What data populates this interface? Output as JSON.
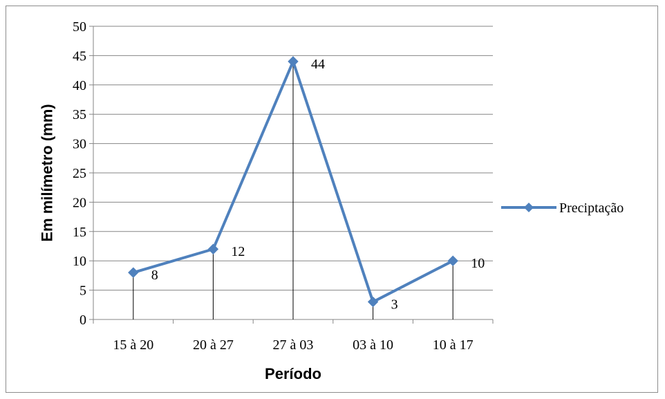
{
  "chart_data": {
    "type": "line",
    "categories": [
      "15 à 20",
      "20 à 27",
      "27 à 03",
      "03 à 10",
      "10 à 17"
    ],
    "series": [
      {
        "name": "Preciptação",
        "values": [
          8,
          12,
          44,
          3,
          10
        ],
        "data_labels": [
          "8",
          "12",
          "44",
          "3",
          "10"
        ],
        "color": "#4f81bd"
      }
    ],
    "xlabel": "Período",
    "ylabel": "Em milímetro (mm)",
    "ylim": [
      0,
      50
    ],
    "yticks": [
      0,
      5,
      10,
      15,
      20,
      25,
      30,
      35,
      40,
      45,
      50
    ],
    "ytick_labels": [
      "0",
      "5",
      "10",
      "15",
      "20",
      "25",
      "30",
      "35",
      "40",
      "45",
      "50"
    ],
    "grid": true,
    "drop_lines": true,
    "marker": "diamond",
    "legend_position": "right"
  }
}
